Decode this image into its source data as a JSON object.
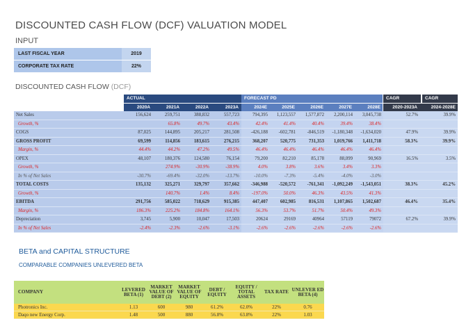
{
  "title": "DISCOUNTED CASH FLOW (DCF) VALUATION MODEL",
  "input": {
    "heading": "INPUT",
    "rows": [
      {
        "label": "LAST FISCAL YEAR",
        "value": "2019"
      },
      {
        "label": "CORPORATE TAX RATE",
        "value": "22%"
      }
    ]
  },
  "dcf": {
    "heading": "DISCOUNTED CASH FLOW",
    "heading_suffix": "(DCF)",
    "groups": {
      "actual": "ACTUAL",
      "forecast": "FORECAST PD",
      "cagr1": "CAGR",
      "cagr2": "CAGR"
    },
    "columns": [
      "2020A",
      "2021A",
      "2022A",
      "2023A",
      "2024E",
      "2025E",
      "2026E",
      "2027E",
      "2028E",
      "2020-2023A",
      "2024-2028E"
    ],
    "rows": [
      {
        "label": "Net Sales",
        "style": "normal",
        "values": [
          "156,624",
          "259,751",
          "388,832",
          "557,723",
          "794,395",
          "1,123,557",
          "1,577,872",
          "2,200,114",
          "3,045,738",
          "52.7%",
          "39.9%"
        ]
      },
      {
        "label": "Growth, %",
        "style": "red",
        "values": [
          "",
          "65.8%",
          "49.7%",
          "43.4%",
          "42.4%",
          "41.4%",
          "40.4%",
          "39.4%",
          "38.4%",
          "",
          ""
        ]
      },
      {
        "label": "COGS",
        "style": "normal",
        "values": [
          "87,025",
          "144,895",
          "205,217",
          "281,508",
          "-426,188",
          "-602,781",
          "-846,519",
          "-1,180,348",
          "-1,634,020",
          "47.9%",
          "39.9%"
        ]
      },
      {
        "label": "GROSS PROFIT",
        "style": "bold",
        "values": [
          "69,599",
          "114,856",
          "183,615",
          "276,215",
          "368,207",
          "520,775",
          "731,353",
          "1,019,766",
          "1,411,718",
          "58.3%",
          "39.9%"
        ]
      },
      {
        "label": "Margin, %",
        "style": "red",
        "values": [
          "44.4%",
          "44.2%",
          "47.2%",
          "49.5%",
          "46.4%",
          "46.4%",
          "46.4%",
          "46.4%",
          "46.4%",
          "",
          ""
        ]
      },
      {
        "label": "OPEX",
        "style": "normal",
        "values": [
          "48,107",
          "180,376",
          "124,580",
          "76,154",
          "79,200",
          "82,210",
          "85,178",
          "88,099",
          "90,969",
          "16.5%",
          "3.5%"
        ]
      },
      {
        "label": "Growth, %",
        "style": "red",
        "values": [
          "",
          "274.9%",
          "-30.9%",
          "-38.9%",
          "4.0%",
          "3.8%",
          "3.6%",
          "3.4%",
          "3.3%",
          "",
          ""
        ]
      },
      {
        "label": "In % of Net Sales",
        "style": "gray",
        "values": [
          "-30.7%",
          "-69.4%",
          "-32.0%",
          "-13.7%",
          "-10.0%",
          "-7.3%",
          "-5.4%",
          "-4.0%",
          "-3.0%",
          "",
          ""
        ]
      },
      {
        "label": "TOTAL COSTS",
        "style": "bold",
        "values": [
          "135,132",
          "325,271",
          "329,797",
          "357,662",
          "-346,988",
          "-520,572",
          "-761,341",
          "-1,092,249",
          "-1,543,051",
          "38.3%",
          "45.2%"
        ]
      },
      {
        "label": "Growth, %",
        "style": "red",
        "values": [
          "",
          "140.7%",
          "1.4%",
          "8.4%",
          "-197.0%",
          "50.0%",
          "46.3%",
          "43.5%",
          "41.3%",
          "",
          ""
        ]
      },
      {
        "label": "EBITDA",
        "style": "bold",
        "values": [
          "291,756",
          "585,022",
          "718,629",
          "915,385",
          "447,407",
          "602,985",
          "816,531",
          "1,107,865",
          "1,502,687",
          "46.4%",
          "35.4%"
        ]
      },
      {
        "label": "Margin, %",
        "style": "red",
        "values": [
          "186.3%",
          "225.2%",
          "184.8%",
          "164.1%",
          "56.3%",
          "53.7%",
          "51.7%",
          "50.4%",
          "49.3%",
          "",
          ""
        ]
      },
      {
        "label": "Depreciation",
        "style": "normal",
        "values": [
          "3,745",
          "5,900",
          "10,047",
          "17,503",
          "20624",
          "29169",
          "40964",
          "57119",
          "79072",
          "67.2%",
          "39.9%"
        ]
      },
      {
        "label": "In % of Net Sales",
        "style": "red",
        "values": [
          "-2.4%",
          "-2.3%",
          "-2.6%",
          "-3.1%",
          "-2.6%",
          "-2.6%",
          "-2.6%",
          "-2.6%",
          "-2.6%",
          "",
          ""
        ]
      }
    ]
  },
  "beta": {
    "heading": "BETA and CAPITAL STRUCTURE",
    "subheading": "COMPARABLE COMPANIES UNLEVERED BETA",
    "columns": [
      "COMPANY",
      "LEVERED BETA (1)",
      "MARKET VALUE OF DEBT (2)",
      "MARKET VALUE OF EQUITY",
      "DEBT / EQUITY",
      "EQUITY / TOTAL ASSETS",
      "TAX RATE",
      "UNLEVER ED BETA (4)"
    ],
    "rows": [
      [
        "Photronics Inc.",
        "1.13",
        "600",
        "980",
        "61.2%",
        "62.0%",
        "22%",
        "0.76"
      ],
      [
        "Daqo new Energy Corp.",
        "1.48",
        "500",
        "880",
        "56.8%",
        "63.8%",
        "22%",
        "1.03"
      ]
    ]
  },
  "colors": {
    "actual_header": "#2a4a7f",
    "forecast_header": "#5b7fbf",
    "cagr_header": "#333a4a",
    "table_fill": "#b9cbeb",
    "beta_header": "#c3e07f",
    "beta_rows": "#fbd84f",
    "negative": "#d22"
  }
}
